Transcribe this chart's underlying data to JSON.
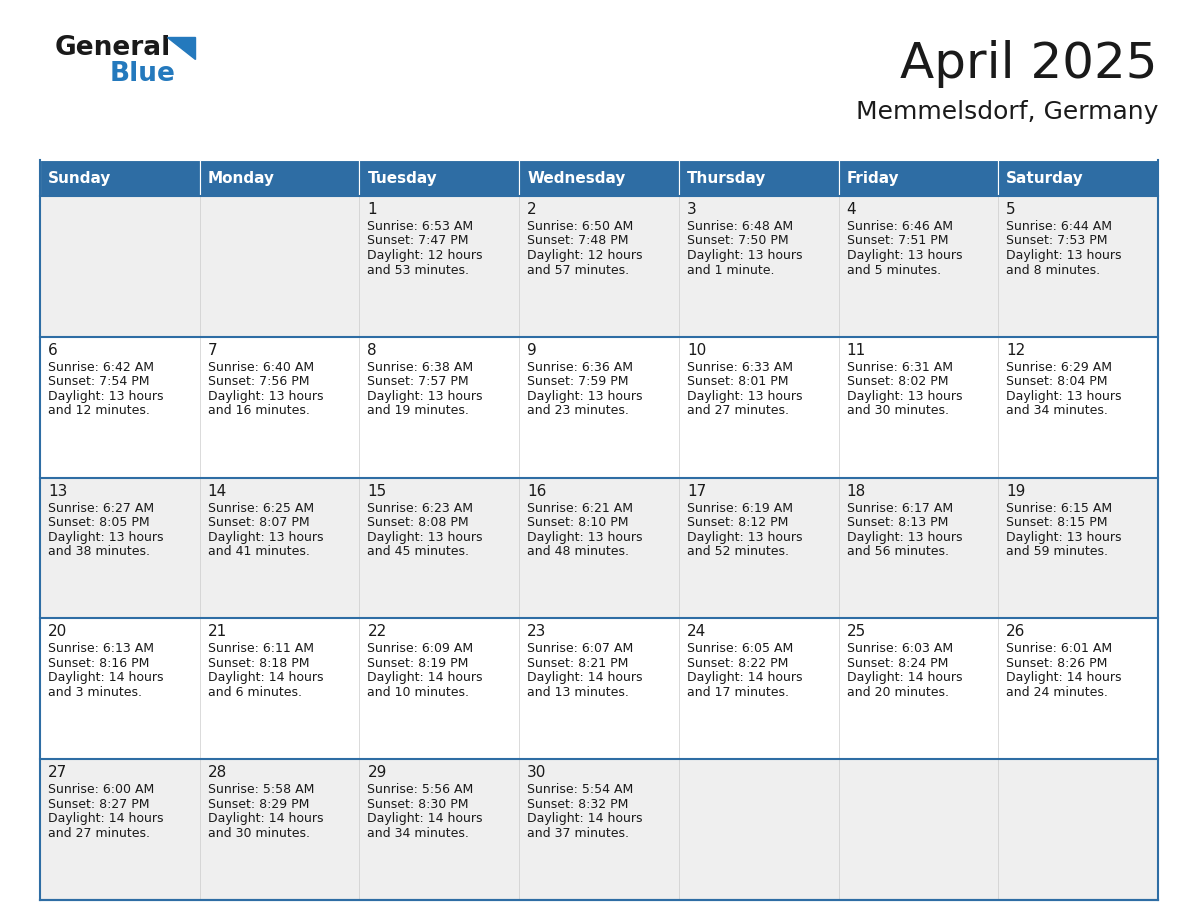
{
  "title": "April 2025",
  "subtitle": "Memmelsdorf, Germany",
  "header_bg": "#2E6DA4",
  "header_text_color": "#FFFFFF",
  "cell_bg_light": "#EFEFEF",
  "cell_bg_white": "#FFFFFF",
  "separator_color": "#2E6DA4",
  "text_color": "#1a1a1a",
  "day_names": [
    "Sunday",
    "Monday",
    "Tuesday",
    "Wednesday",
    "Thursday",
    "Friday",
    "Saturday"
  ],
  "calendar": [
    [
      {
        "day": "",
        "lines": []
      },
      {
        "day": "",
        "lines": []
      },
      {
        "day": "1",
        "lines": [
          "Sunrise: 6:53 AM",
          "Sunset: 7:47 PM",
          "Daylight: 12 hours",
          "and 53 minutes."
        ]
      },
      {
        "day": "2",
        "lines": [
          "Sunrise: 6:50 AM",
          "Sunset: 7:48 PM",
          "Daylight: 12 hours",
          "and 57 minutes."
        ]
      },
      {
        "day": "3",
        "lines": [
          "Sunrise: 6:48 AM",
          "Sunset: 7:50 PM",
          "Daylight: 13 hours",
          "and 1 minute."
        ]
      },
      {
        "day": "4",
        "lines": [
          "Sunrise: 6:46 AM",
          "Sunset: 7:51 PM",
          "Daylight: 13 hours",
          "and 5 minutes."
        ]
      },
      {
        "day": "5",
        "lines": [
          "Sunrise: 6:44 AM",
          "Sunset: 7:53 PM",
          "Daylight: 13 hours",
          "and 8 minutes."
        ]
      }
    ],
    [
      {
        "day": "6",
        "lines": [
          "Sunrise: 6:42 AM",
          "Sunset: 7:54 PM",
          "Daylight: 13 hours",
          "and 12 minutes."
        ]
      },
      {
        "day": "7",
        "lines": [
          "Sunrise: 6:40 AM",
          "Sunset: 7:56 PM",
          "Daylight: 13 hours",
          "and 16 minutes."
        ]
      },
      {
        "day": "8",
        "lines": [
          "Sunrise: 6:38 AM",
          "Sunset: 7:57 PM",
          "Daylight: 13 hours",
          "and 19 minutes."
        ]
      },
      {
        "day": "9",
        "lines": [
          "Sunrise: 6:36 AM",
          "Sunset: 7:59 PM",
          "Daylight: 13 hours",
          "and 23 minutes."
        ]
      },
      {
        "day": "10",
        "lines": [
          "Sunrise: 6:33 AM",
          "Sunset: 8:01 PM",
          "Daylight: 13 hours",
          "and 27 minutes."
        ]
      },
      {
        "day": "11",
        "lines": [
          "Sunrise: 6:31 AM",
          "Sunset: 8:02 PM",
          "Daylight: 13 hours",
          "and 30 minutes."
        ]
      },
      {
        "day": "12",
        "lines": [
          "Sunrise: 6:29 AM",
          "Sunset: 8:04 PM",
          "Daylight: 13 hours",
          "and 34 minutes."
        ]
      }
    ],
    [
      {
        "day": "13",
        "lines": [
          "Sunrise: 6:27 AM",
          "Sunset: 8:05 PM",
          "Daylight: 13 hours",
          "and 38 minutes."
        ]
      },
      {
        "day": "14",
        "lines": [
          "Sunrise: 6:25 AM",
          "Sunset: 8:07 PM",
          "Daylight: 13 hours",
          "and 41 minutes."
        ]
      },
      {
        "day": "15",
        "lines": [
          "Sunrise: 6:23 AM",
          "Sunset: 8:08 PM",
          "Daylight: 13 hours",
          "and 45 minutes."
        ]
      },
      {
        "day": "16",
        "lines": [
          "Sunrise: 6:21 AM",
          "Sunset: 8:10 PM",
          "Daylight: 13 hours",
          "and 48 minutes."
        ]
      },
      {
        "day": "17",
        "lines": [
          "Sunrise: 6:19 AM",
          "Sunset: 8:12 PM",
          "Daylight: 13 hours",
          "and 52 minutes."
        ]
      },
      {
        "day": "18",
        "lines": [
          "Sunrise: 6:17 AM",
          "Sunset: 8:13 PM",
          "Daylight: 13 hours",
          "and 56 minutes."
        ]
      },
      {
        "day": "19",
        "lines": [
          "Sunrise: 6:15 AM",
          "Sunset: 8:15 PM",
          "Daylight: 13 hours",
          "and 59 minutes."
        ]
      }
    ],
    [
      {
        "day": "20",
        "lines": [
          "Sunrise: 6:13 AM",
          "Sunset: 8:16 PM",
          "Daylight: 14 hours",
          "and 3 minutes."
        ]
      },
      {
        "day": "21",
        "lines": [
          "Sunrise: 6:11 AM",
          "Sunset: 8:18 PM",
          "Daylight: 14 hours",
          "and 6 minutes."
        ]
      },
      {
        "day": "22",
        "lines": [
          "Sunrise: 6:09 AM",
          "Sunset: 8:19 PM",
          "Daylight: 14 hours",
          "and 10 minutes."
        ]
      },
      {
        "day": "23",
        "lines": [
          "Sunrise: 6:07 AM",
          "Sunset: 8:21 PM",
          "Daylight: 14 hours",
          "and 13 minutes."
        ]
      },
      {
        "day": "24",
        "lines": [
          "Sunrise: 6:05 AM",
          "Sunset: 8:22 PM",
          "Daylight: 14 hours",
          "and 17 minutes."
        ]
      },
      {
        "day": "25",
        "lines": [
          "Sunrise: 6:03 AM",
          "Sunset: 8:24 PM",
          "Daylight: 14 hours",
          "and 20 minutes."
        ]
      },
      {
        "day": "26",
        "lines": [
          "Sunrise: 6:01 AM",
          "Sunset: 8:26 PM",
          "Daylight: 14 hours",
          "and 24 minutes."
        ]
      }
    ],
    [
      {
        "day": "27",
        "lines": [
          "Sunrise: 6:00 AM",
          "Sunset: 8:27 PM",
          "Daylight: 14 hours",
          "and 27 minutes."
        ]
      },
      {
        "day": "28",
        "lines": [
          "Sunrise: 5:58 AM",
          "Sunset: 8:29 PM",
          "Daylight: 14 hours",
          "and 30 minutes."
        ]
      },
      {
        "day": "29",
        "lines": [
          "Sunrise: 5:56 AM",
          "Sunset: 8:30 PM",
          "Daylight: 14 hours",
          "and 34 minutes."
        ]
      },
      {
        "day": "30",
        "lines": [
          "Sunrise: 5:54 AM",
          "Sunset: 8:32 PM",
          "Daylight: 14 hours",
          "and 37 minutes."
        ]
      },
      {
        "day": "",
        "lines": []
      },
      {
        "day": "",
        "lines": []
      },
      {
        "day": "",
        "lines": []
      }
    ]
  ],
  "logo_color_general": "#1a1a1a",
  "logo_color_blue": "#2479BD",
  "title_fontsize": 36,
  "subtitle_fontsize": 18,
  "header_fontsize": 11,
  "day_num_fontsize": 11,
  "cell_text_fontsize": 9
}
